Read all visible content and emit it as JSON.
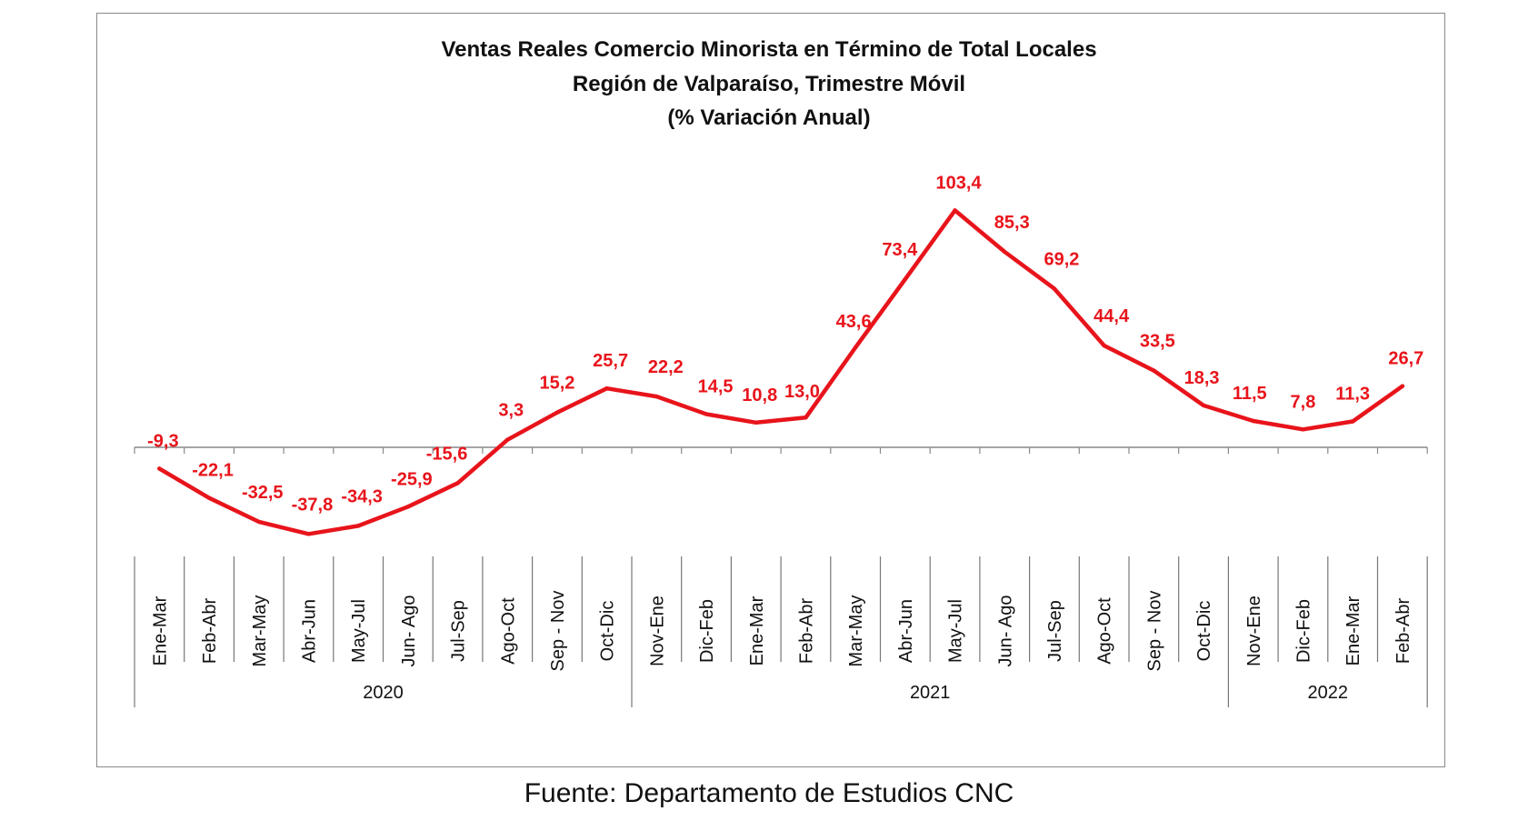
{
  "chart_data": {
    "type": "line",
    "title": [
      "Ventas Reales Comercio Minorista  en Término de Total Locales",
      "Región de Valparaíso, Trimestre Móvil",
      "(% Variación Anual)"
    ],
    "categories": [
      "Ene-Mar",
      "Feb-Abr",
      "Mar-May",
      "Abr-Jun",
      "May-Jul",
      "Jun- Ago",
      "Jul-Sep",
      "Ago-Oct",
      "Sep - Nov",
      "Oct-Dic",
      "Nov-Ene",
      "Dic-Feb",
      "Ene-Mar",
      "Feb-Abr",
      "Mar-May",
      "Abr-Jun",
      "May-Jul",
      "Jun- Ago",
      "Jul-Sep",
      "Ago-Oct",
      "Sep - Nov",
      "Oct-Dic",
      "Nov-Ene",
      "Dic-Feb",
      "Ene-Mar",
      "Feb-Abr"
    ],
    "values": [
      -9.3,
      -22.1,
      -32.5,
      -37.8,
      -34.3,
      -25.9,
      -15.6,
      3.3,
      15.2,
      25.7,
      22.2,
      14.5,
      10.8,
      13.0,
      43.6,
      73.4,
      103.4,
      85.3,
      69.2,
      44.4,
      33.5,
      18.3,
      11.5,
      7.8,
      11.3,
      26.7
    ],
    "data_labels": [
      "-9,3",
      "-22,1",
      "-32,5",
      "-37,8",
      "-34,3",
      "-25,9",
      "-15,6",
      "3,3",
      "15,2",
      "25,7",
      "22,2",
      "14,5",
      "10,8",
      "13,0",
      "43,6",
      "73,4",
      "103,4",
      "85,3",
      "69,2",
      "44,4",
      "33,5",
      "18,3",
      "11,5",
      "7,8",
      "11,3",
      "26,7"
    ],
    "groups": [
      {
        "label": "2020",
        "start": 0,
        "end": 9
      },
      {
        "label": "2021",
        "start": 10,
        "end": 21
      },
      {
        "label": "2022",
        "start": 22,
        "end": 25
      }
    ],
    "series_color": "#e8141b",
    "grid": false,
    "legend": "none"
  },
  "source": "Fuente: Departamento de Estudios CNC"
}
